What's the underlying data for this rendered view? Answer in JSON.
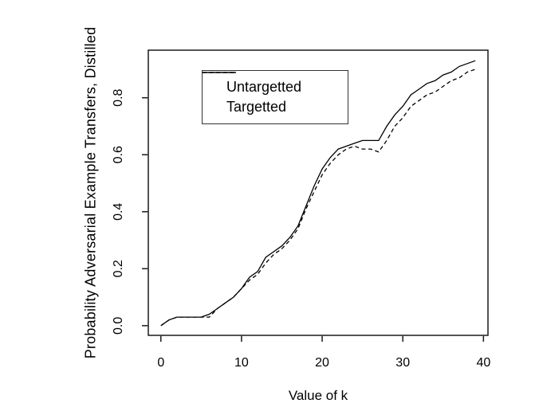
{
  "figure": {
    "background": "#ffffff",
    "axis_color": "#1a1a1a",
    "line_color": "#000000"
  },
  "chart_data": {
    "type": "line",
    "title": "",
    "xlabel": "Value of k",
    "ylabel": "Probability Adversarial Example Transfers, Distilled",
    "grid": false,
    "legend_position": "top-left",
    "xlim": [
      -1.56,
      40.56
    ],
    "ylim": [
      -0.034,
      0.967
    ],
    "x_ticks": [
      {
        "v": 0,
        "label": "0"
      },
      {
        "v": 10,
        "label": "10"
      },
      {
        "v": 20,
        "label": "20"
      },
      {
        "v": 30,
        "label": "30"
      },
      {
        "v": 40,
        "label": "40"
      }
    ],
    "y_ticks": [
      {
        "v": 0.0,
        "label": "0.0"
      },
      {
        "v": 0.2,
        "label": "0.2"
      },
      {
        "v": 0.4,
        "label": "0.4"
      },
      {
        "v": 0.6,
        "label": "0.6"
      },
      {
        "v": 0.8,
        "label": "0.8"
      }
    ],
    "x": [
      0,
      1,
      2,
      3,
      4,
      5,
      6,
      7,
      8,
      9,
      10,
      11,
      12,
      13,
      14,
      15,
      16,
      17,
      18,
      19,
      20,
      21,
      22,
      23,
      24,
      25,
      26,
      27,
      28,
      29,
      30,
      31,
      32,
      33,
      34,
      35,
      36,
      37,
      38,
      39
    ],
    "series": [
      {
        "name": "Untargetted",
        "style": "solid",
        "values": [
          0.0,
          0.02,
          0.03,
          0.03,
          0.03,
          0.03,
          0.04,
          0.06,
          0.08,
          0.1,
          0.13,
          0.17,
          0.19,
          0.24,
          0.26,
          0.28,
          0.31,
          0.35,
          0.42,
          0.49,
          0.55,
          0.59,
          0.62,
          0.63,
          0.64,
          0.65,
          0.65,
          0.65,
          0.7,
          0.74,
          0.77,
          0.81,
          0.83,
          0.85,
          0.86,
          0.88,
          0.89,
          0.91,
          0.92,
          0.93
        ]
      },
      {
        "name": "Targetted",
        "style": "dashed",
        "values": [
          0.0,
          0.02,
          0.03,
          0.03,
          0.03,
          0.03,
          0.03,
          0.06,
          0.08,
          0.1,
          0.13,
          0.16,
          0.18,
          0.22,
          0.25,
          0.27,
          0.3,
          0.34,
          0.41,
          0.47,
          0.53,
          0.57,
          0.6,
          0.62,
          0.63,
          0.62,
          0.62,
          0.61,
          0.65,
          0.7,
          0.73,
          0.77,
          0.79,
          0.81,
          0.82,
          0.84,
          0.86,
          0.87,
          0.89,
          0.9
        ]
      }
    ]
  }
}
